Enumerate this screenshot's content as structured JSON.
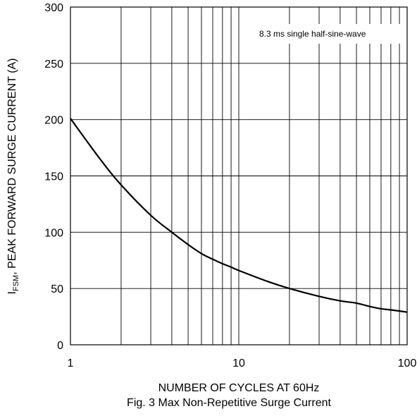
{
  "chart_data": {
    "type": "line",
    "xscale": "log",
    "xlim": [
      1,
      100
    ],
    "ylim": [
      0,
      300
    ],
    "xticks": [
      1,
      10,
      100
    ],
    "xtick_labels": [
      "1",
      "10",
      "100"
    ],
    "yticks": [
      0,
      50,
      100,
      150,
      200,
      250,
      300
    ],
    "ytick_labels": [
      "0",
      "50",
      "100",
      "150",
      "200",
      "250",
      "300"
    ],
    "grid": true,
    "xlabel": "NUMBER OF CYCLES AT 60Hz",
    "ylabel": {
      "prefix": "I",
      "subscript": "FSM",
      "suffix": ", PEAK FORWARD SURGE CURRENT (A)"
    },
    "annotation": "8.3 ms single half-sine-wave",
    "caption": "Fig. 3  Max Non-Repetitive Surge Current",
    "series": [
      {
        "x": [
          1,
          1.5,
          2,
          3,
          4,
          5,
          6,
          7,
          8,
          9,
          10,
          15,
          20,
          30,
          40,
          50,
          60,
          70,
          80,
          90,
          100
        ],
        "y": [
          201,
          165,
          142,
          115,
          100,
          89,
          81,
          76,
          72,
          69,
          66,
          56,
          50,
          43,
          39,
          37,
          34,
          32,
          31,
          30,
          29
        ]
      }
    ]
  }
}
